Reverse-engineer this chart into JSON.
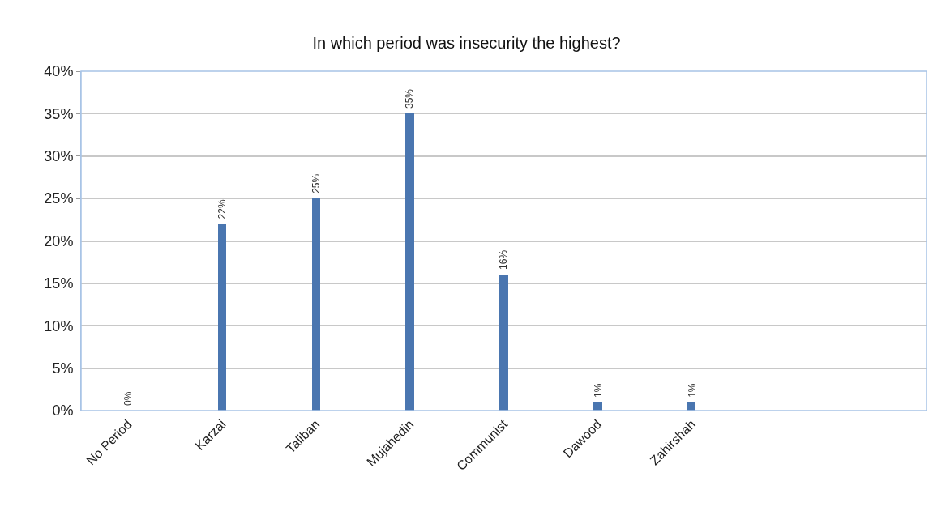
{
  "chart_data": {
    "type": "bar",
    "title": "In which period was insecurity the highest?",
    "categories": [
      "No Period",
      "Karzai",
      "Taliban",
      "Mujahedin",
      "Communist",
      "Dawood",
      "Zahirshah",
      null,
      null
    ],
    "values": [
      0,
      22,
      25,
      35,
      16,
      1,
      1,
      null,
      null
    ],
    "value_labels": [
      "0%",
      "22%",
      "25%",
      "35%",
      "16%",
      "1%",
      "1%",
      null,
      null
    ],
    "color": "#4a76b0",
    "ylim": [
      0,
      40
    ],
    "yticks": [
      {
        "value": 0,
        "label": "0%"
      },
      {
        "value": 5,
        "label": "5%"
      },
      {
        "value": 10,
        "label": "10%"
      },
      {
        "value": 15,
        "label": "15%"
      },
      {
        "value": 20,
        "label": "20%"
      },
      {
        "value": 25,
        "label": "25%"
      },
      {
        "value": 30,
        "label": "30%"
      },
      {
        "value": 35,
        "label": "35%"
      },
      {
        "value": 40,
        "label": "40%"
      }
    ],
    "grid": "y",
    "legend": false
  }
}
